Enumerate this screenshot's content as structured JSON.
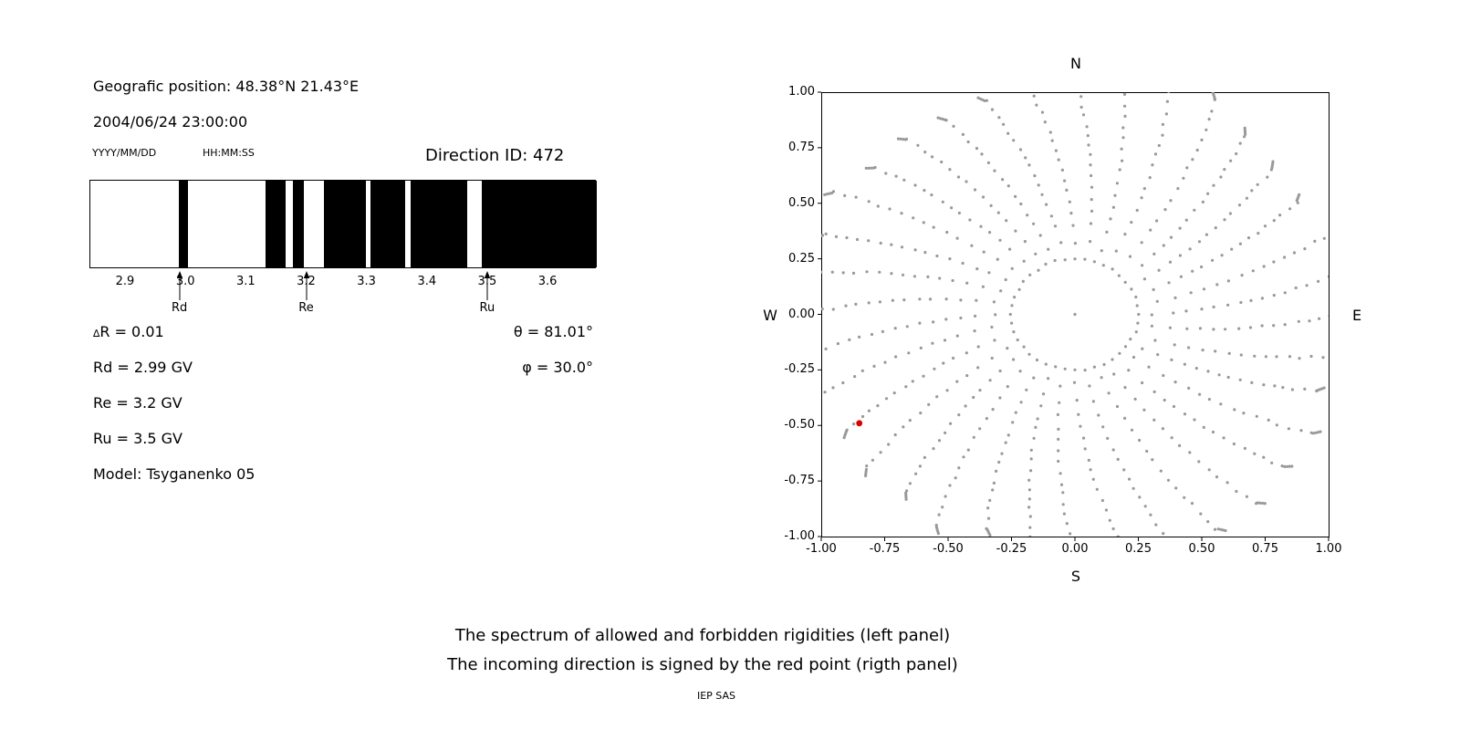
{
  "figure": {
    "background": "#ffffff"
  },
  "header": {
    "geo_position": "Geografic position: 48.38°N 21.43°E",
    "datetime": "2004/06/24 23:00:00",
    "date_format_label": "YYYY/MM/DD",
    "time_format_label": "HH:MM:SS",
    "direction_id": "Direction ID: 472"
  },
  "info": {
    "delta_symbol": "∆",
    "delta_rest": "R = 0.01",
    "rd": "Rd = 2.99 GV",
    "re": "Re = 3.2 GV",
    "ru": "Ru = 3.5 GV",
    "model": "Model: Tsyganenko 05",
    "theta": "θ = 81.01°",
    "phi": "φ = 30.0°"
  },
  "captions": {
    "line1": "The spectrum of allowed and forbidden rigidities (left panel)",
    "line2": "The incoming direction is signed by the red point (rigth panel)",
    "credit": "IEP SAS"
  },
  "chart_data": [
    {
      "id": "rigidity-spectrum",
      "type": "bar",
      "description": "Barcode spectrum of allowed (white) and forbidden (black) rigidities, in GV",
      "x_range": [
        2.841,
        3.68
      ],
      "x_ticks": [
        2.9,
        3.0,
        3.1,
        3.2,
        3.3,
        3.4,
        3.5,
        3.6
      ],
      "black_bands_gv": [
        [
          2.988,
          3.003
        ],
        [
          3.131,
          3.165
        ],
        [
          3.177,
          3.195
        ],
        [
          3.228,
          3.298
        ],
        [
          3.305,
          3.363
        ],
        [
          3.372,
          3.466
        ],
        [
          3.489,
          3.68
        ]
      ],
      "markers": [
        {
          "label": "Rd",
          "value": 2.99
        },
        {
          "label": "Re",
          "value": 3.2
        },
        {
          "label": "Ru",
          "value": 3.5
        }
      ],
      "band_color": "#000000",
      "background": "#ffffff"
    },
    {
      "id": "direction-map",
      "type": "scatter",
      "xlim": [
        -1,
        1
      ],
      "ylim": [
        -1,
        1
      ],
      "tick_values": [
        -1,
        -0.75,
        -0.5,
        -0.25,
        0,
        0.25,
        0.5,
        0.75,
        1
      ],
      "tick_labels": [
        "-1.00",
        "-0.75",
        "-0.50",
        "-0.25",
        "0.00",
        "0.25",
        "0.50",
        "0.75",
        "1.00"
      ],
      "compass": {
        "top": "N",
        "bottom": "S",
        "left": "W",
        "right": "E"
      },
      "grid": false,
      "dot_color": "#999999",
      "dot_radius_px": 1.6,
      "center_dot": true,
      "inner_ring": {
        "radius": 0.25,
        "count": 40
      },
      "spokes": {
        "count": 36,
        "start_deg": 0,
        "step_deg": 10,
        "r_min": 0.3,
        "r_max": 1.06,
        "dots_per_spoke": 16,
        "radial_power": 0.85,
        "curl_deg": 10,
        "tip_cluster": 4,
        "tip_step": 0.007
      },
      "red_point": {
        "x": -0.85,
        "y": -0.49,
        "color": "#dd0000",
        "radius_px": 3.4
      }
    }
  ]
}
